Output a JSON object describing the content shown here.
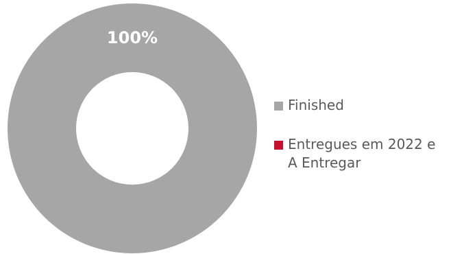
{
  "chart_data": {
    "type": "pie",
    "style": "donut",
    "series": [
      {
        "name": "Finished",
        "value": 100,
        "color": "#a6a6a6"
      },
      {
        "name": "Entregues em 2022 e\nA Entregar",
        "value": 0,
        "color": "#c8102e"
      }
    ],
    "data_labels": [
      "100%"
    ],
    "legend_position": "right"
  }
}
